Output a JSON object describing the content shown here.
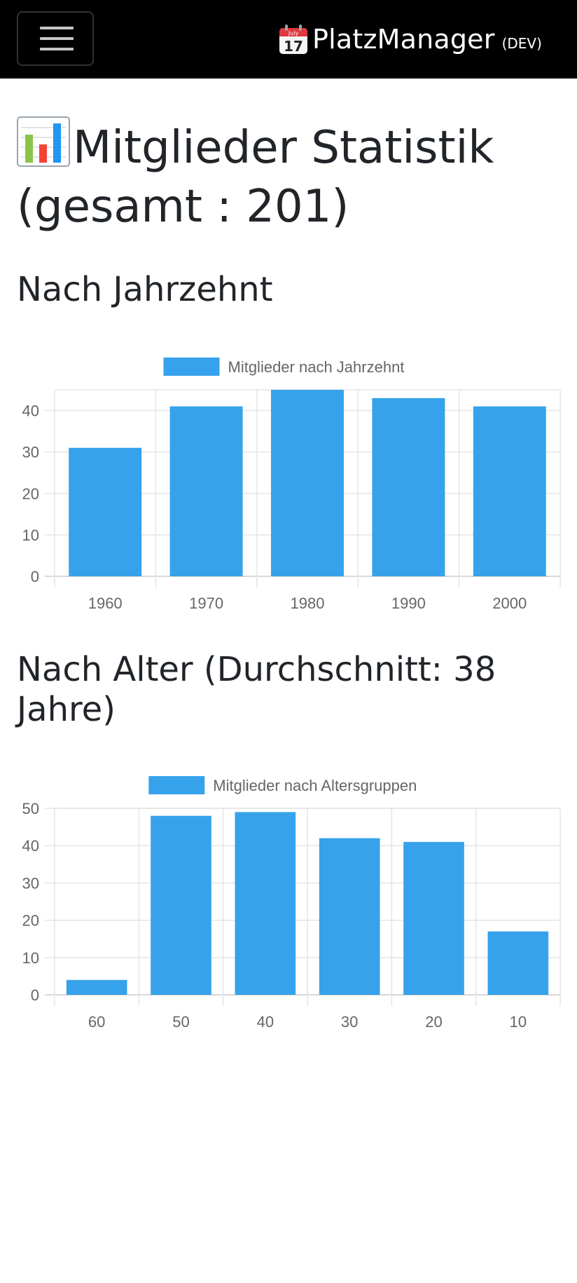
{
  "navbar": {
    "brand_name": "PlatzManager",
    "brand_env": "(DEV)",
    "calendar_month": "July",
    "calendar_day": "17",
    "toggler_icon": "hamburger-menu-icon"
  },
  "page": {
    "title_line1": "Mitglieder Statistik",
    "title_line2": "(gesamt : 201)",
    "title_icon": "bar-chart-icon"
  },
  "sections": {
    "decade_title": "Nach Jahrzehnt",
    "age_title_line1": "Nach Alter (Durchschnitt: 38",
    "age_title_line2": "Jahre)"
  },
  "colors": {
    "bar": "#36a2eb",
    "grid": "#e5e5e5",
    "navbar": "#000000"
  },
  "chart_data": [
    {
      "type": "bar",
      "categories": [
        "1960",
        "1970",
        "1980",
        "1990",
        "2000"
      ],
      "series": [
        {
          "name": "Mitglieder nach Jahrzehnt",
          "values": [
            31,
            41,
            45,
            43,
            41
          ]
        }
      ],
      "ylim": [
        0,
        45
      ],
      "yticks": [
        0,
        10,
        20,
        30,
        40
      ],
      "legend": "top",
      "grid": true
    },
    {
      "type": "bar",
      "categories": [
        "60",
        "50",
        "40",
        "30",
        "20",
        "10"
      ],
      "series": [
        {
          "name": "Mitglieder nach Altersgruppen",
          "values": [
            4,
            48,
            49,
            42,
            41,
            17
          ]
        }
      ],
      "ylim": [
        0,
        50
      ],
      "yticks": [
        0,
        10,
        20,
        30,
        40,
        50
      ],
      "legend": "top",
      "grid": true
    }
  ]
}
